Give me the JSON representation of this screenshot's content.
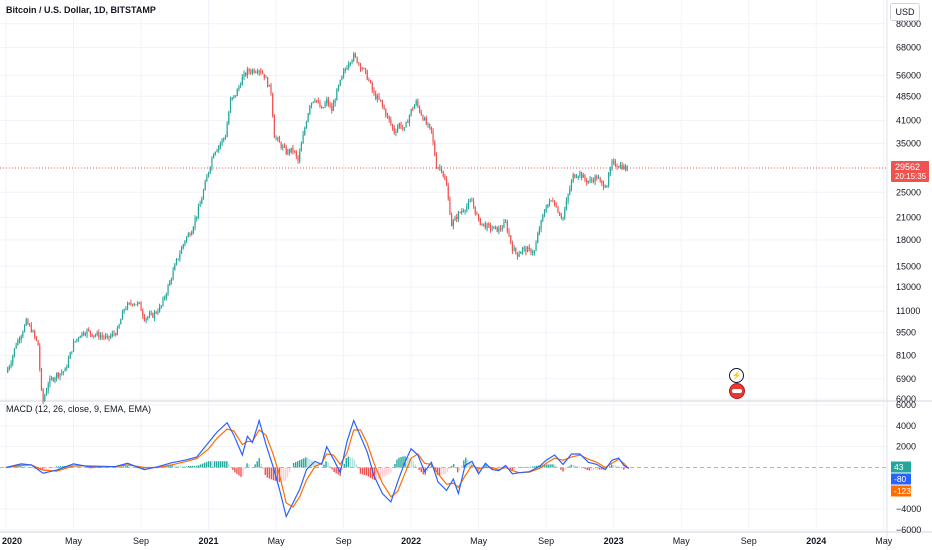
{
  "header": {
    "title": "Bitcoin / U.S. Dollar, 1D, BITSTAMP",
    "currency_button": "USD"
  },
  "macd": {
    "title": "MACD (12, 26, close, 9, EMA, EMA)"
  },
  "colors": {
    "up": "#26a69a",
    "down": "#ef5350",
    "macd_line": "#2962ff",
    "signal_line": "#ff6d00",
    "grid": "#f0f3fa"
  },
  "price_labels": {
    "last_price": "29562",
    "countdown": "20:15:35"
  },
  "macd_labels": {
    "histogram": "43",
    "macd": "-80",
    "signal": "-123"
  },
  "chart_data": [
    {
      "type": "candlestick",
      "title": "Bitcoin / U.S. Dollar, 1D, BITSTAMP",
      "yscale": "log",
      "ylim": [
        6000,
        85000
      ],
      "y_ticks": [
        6000,
        6900,
        8100,
        9500,
        11000,
        13000,
        15000,
        18000,
        21000,
        25000,
        29562,
        35000,
        41000,
        48500,
        56000,
        68000,
        80000
      ],
      "y_tick_labels": [
        "6000",
        "6900",
        "8100",
        "9500",
        "11000",
        "13000",
        "15000",
        "18000",
        "21000",
        "25000",
        "",
        "35000",
        "41000",
        "48500",
        "56000",
        "68000",
        "80000"
      ],
      "x_ticks": [
        "2020",
        "May",
        "Sep",
        "2021",
        "May",
        "Sep",
        "2022",
        "May",
        "Sep",
        "2023",
        "May",
        "Sep",
        "2024",
        "May"
      ],
      "x_tick_months": [
        0,
        4,
        8,
        12,
        16,
        20,
        24,
        28,
        32,
        36,
        40,
        44,
        48,
        52
      ],
      "last_price": 29562,
      "series_close": [
        [
          0,
          7200
        ],
        [
          0.3,
          7800
        ],
        [
          0.6,
          8800
        ],
        [
          0.9,
          9400
        ],
        [
          1.2,
          10200
        ],
        [
          1.5,
          9700
        ],
        [
          1.9,
          8700
        ],
        [
          2.15,
          5800
        ],
        [
          2.5,
          6700
        ],
        [
          3.0,
          7100
        ],
        [
          3.5,
          7300
        ],
        [
          4.0,
          8800
        ],
        [
          4.4,
          9400
        ],
        [
          4.8,
          9600
        ],
        [
          5.1,
          9400
        ],
        [
          5.6,
          9300
        ],
        [
          6.0,
          9100
        ],
        [
          6.6,
          9600
        ],
        [
          7.0,
          11200
        ],
        [
          7.5,
          11700
        ],
        [
          7.9,
          11500
        ],
        [
          8.2,
          10500
        ],
        [
          8.7,
          10700
        ],
        [
          9.2,
          11400
        ],
        [
          9.6,
          13000
        ],
        [
          10.1,
          15500
        ],
        [
          10.6,
          18000
        ],
        [
          11.0,
          19300
        ],
        [
          11.5,
          23000
        ],
        [
          12.0,
          29000
        ],
        [
          12.3,
          33000
        ],
        [
          12.6,
          34500
        ],
        [
          13.0,
          37000
        ],
        [
          13.3,
          47000
        ],
        [
          13.6,
          49000
        ],
        [
          14.0,
          55000
        ],
        [
          14.3,
          57500
        ],
        [
          14.6,
          58000
        ],
        [
          15.0,
          58500
        ],
        [
          15.3,
          56000
        ],
        [
          15.7,
          50000
        ],
        [
          15.9,
          37000
        ],
        [
          16.2,
          35000
        ],
        [
          16.6,
          33000
        ],
        [
          17.0,
          33500
        ],
        [
          17.3,
          31000
        ],
        [
          17.7,
          39000
        ],
        [
          18.0,
          46000
        ],
        [
          18.3,
          48000
        ],
        [
          18.7,
          44000
        ],
        [
          19.0,
          47000
        ],
        [
          19.3,
          44000
        ],
        [
          19.6,
          50000
        ],
        [
          20.0,
          57000
        ],
        [
          20.3,
          61500
        ],
        [
          20.6,
          64000
        ],
        [
          20.8,
          62000
        ],
        [
          21.2,
          58000
        ],
        [
          21.5,
          54000
        ],
        [
          21.8,
          49000
        ],
        [
          22.2,
          46500
        ],
        [
          22.6,
          42000
        ],
        [
          23.0,
          38000
        ],
        [
          23.3,
          40000
        ],
        [
          23.6,
          38500
        ],
        [
          24.0,
          44000
        ],
        [
          24.3,
          46500
        ],
        [
          24.5,
          44000
        ],
        [
          24.9,
          40000
        ],
        [
          25.2,
          38000
        ],
        [
          25.5,
          30000
        ],
        [
          25.8,
          29500
        ],
        [
          26.1,
          26000
        ],
        [
          26.4,
          20000
        ],
        [
          26.8,
          21500
        ],
        [
          27.2,
          22500
        ],
        [
          27.6,
          23500
        ],
        [
          28.0,
          20500
        ],
        [
          28.4,
          19800
        ],
        [
          28.8,
          19500
        ],
        [
          29.2,
          19300
        ],
        [
          29.6,
          20200
        ],
        [
          30.0,
          17000
        ],
        [
          30.3,
          16300
        ],
        [
          30.6,
          16900
        ],
        [
          31.0,
          16700
        ],
        [
          31.3,
          16600
        ],
        [
          31.6,
          19500
        ],
        [
          32.0,
          22800
        ],
        [
          32.4,
          23800
        ],
        [
          32.8,
          21500
        ],
        [
          33.0,
          21000
        ],
        [
          33.3,
          24500
        ],
        [
          33.6,
          28000
        ],
        [
          34.0,
          28500
        ],
        [
          34.3,
          27200
        ],
        [
          34.6,
          27000
        ],
        [
          35.0,
          27800
        ],
        [
          35.3,
          26300
        ],
        [
          35.6,
          26500
        ],
        [
          35.9,
          30500
        ],
        [
          36.2,
          30300
        ],
        [
          36.5,
          29900
        ],
        [
          36.7,
          29400
        ],
        [
          36.9,
          29562
        ]
      ]
    },
    {
      "type": "macd",
      "title": "MACD (12, 26, close, 9, EMA, EMA)",
      "ylim": [
        -6000,
        6000
      ],
      "y_ticks": [
        6000,
        4000,
        2000,
        -4000,
        -6000
      ],
      "y_tick_labels": [
        "6000",
        "4000",
        "2000",
        "−4000",
        "−6000"
      ],
      "last_values": {
        "histogram": 43,
        "macd": -80,
        "signal": -123
      },
      "macd_line": [
        [
          0,
          0
        ],
        [
          0.9,
          350
        ],
        [
          1.5,
          250
        ],
        [
          2.2,
          -550
        ],
        [
          3.0,
          -250
        ],
        [
          4.0,
          350
        ],
        [
          5.0,
          50
        ],
        [
          6.5,
          100
        ],
        [
          7.2,
          400
        ],
        [
          8.2,
          -200
        ],
        [
          9.0,
          80
        ],
        [
          9.8,
          450
        ],
        [
          10.6,
          700
        ],
        [
          11.3,
          1000
        ],
        [
          12.0,
          2400
        ],
        [
          12.5,
          3400
        ],
        [
          13.1,
          4300
        ],
        [
          13.5,
          3100
        ],
        [
          14.0,
          1200
        ],
        [
          14.3,
          3000
        ],
        [
          14.6,
          2400
        ],
        [
          15.0,
          4500
        ],
        [
          15.4,
          2200
        ],
        [
          15.8,
          200
        ],
        [
          16.2,
          -2100
        ],
        [
          16.6,
          -4700
        ],
        [
          17.0,
          -3400
        ],
        [
          17.4,
          -2100
        ],
        [
          17.8,
          -200
        ],
        [
          18.3,
          600
        ],
        [
          18.7,
          300
        ],
        [
          19.0,
          2000
        ],
        [
          19.4,
          800
        ],
        [
          19.8,
          -500
        ],
        [
          20.2,
          2500
        ],
        [
          20.6,
          4500
        ],
        [
          21.0,
          3000
        ],
        [
          21.4,
          1500
        ],
        [
          21.8,
          -800
        ],
        [
          22.3,
          -2500
        ],
        [
          22.8,
          -3300
        ],
        [
          23.2,
          -1400
        ],
        [
          23.6,
          400
        ],
        [
          24.0,
          1800
        ],
        [
          24.4,
          1200
        ],
        [
          24.8,
          -400
        ],
        [
          25.2,
          500
        ],
        [
          25.6,
          -1400
        ],
        [
          26.1,
          -2200
        ],
        [
          26.5,
          -1100
        ],
        [
          26.8,
          -2500
        ],
        [
          27.2,
          200
        ],
        [
          27.6,
          600
        ],
        [
          28.0,
          -600
        ],
        [
          28.4,
          400
        ],
        [
          28.8,
          -200
        ],
        [
          29.2,
          -300
        ],
        [
          29.6,
          200
        ],
        [
          30.0,
          -600
        ],
        [
          30.4,
          -500
        ],
        [
          31.0,
          -400
        ],
        [
          31.6,
          100
        ],
        [
          32.0,
          700
        ],
        [
          32.5,
          1200
        ],
        [
          33.0,
          300
        ],
        [
          33.5,
          1300
        ],
        [
          34.0,
          1300
        ],
        [
          34.5,
          500
        ],
        [
          35.0,
          300
        ],
        [
          35.5,
          -200
        ],
        [
          35.9,
          700
        ],
        [
          36.3,
          900
        ],
        [
          36.6,
          200
        ],
        [
          36.9,
          -80
        ]
      ],
      "signal_line": [
        [
          0,
          0
        ],
        [
          0.9,
          200
        ],
        [
          1.5,
          250
        ],
        [
          2.2,
          -250
        ],
        [
          3.0,
          -350
        ],
        [
          4.0,
          150
        ],
        [
          5.0,
          150
        ],
        [
          6.5,
          80
        ],
        [
          7.2,
          250
        ],
        [
          8.2,
          0
        ],
        [
          9.0,
          0
        ],
        [
          9.8,
          250
        ],
        [
          10.6,
          550
        ],
        [
          11.3,
          850
        ],
        [
          12.0,
          1800
        ],
        [
          12.5,
          2800
        ],
        [
          13.1,
          3700
        ],
        [
          13.5,
          3500
        ],
        [
          14.0,
          2200
        ],
        [
          14.3,
          2500
        ],
        [
          14.6,
          2500
        ],
        [
          15.0,
          3600
        ],
        [
          15.4,
          3100
        ],
        [
          15.8,
          1400
        ],
        [
          16.2,
          -700
        ],
        [
          16.6,
          -3400
        ],
        [
          17.0,
          -3800
        ],
        [
          17.4,
          -2800
        ],
        [
          17.8,
          -1200
        ],
        [
          18.3,
          100
        ],
        [
          18.7,
          400
        ],
        [
          19.0,
          1300
        ],
        [
          19.4,
          1200
        ],
        [
          19.8,
          300
        ],
        [
          20.2,
          1400
        ],
        [
          20.6,
          3600
        ],
        [
          21.0,
          3600
        ],
        [
          21.4,
          2300
        ],
        [
          21.8,
          400
        ],
        [
          22.3,
          -1500
        ],
        [
          22.8,
          -2800
        ],
        [
          23.2,
          -2300
        ],
        [
          23.6,
          -700
        ],
        [
          24.0,
          900
        ],
        [
          24.4,
          1300
        ],
        [
          24.8,
          400
        ],
        [
          25.2,
          300
        ],
        [
          25.6,
          -600
        ],
        [
          26.1,
          -1600
        ],
        [
          26.5,
          -1500
        ],
        [
          26.8,
          -1900
        ],
        [
          27.2,
          -800
        ],
        [
          27.6,
          200
        ],
        [
          28.0,
          -100
        ],
        [
          28.4,
          0
        ],
        [
          28.8,
          0
        ],
        [
          29.2,
          -200
        ],
        [
          29.6,
          0
        ],
        [
          30.0,
          -300
        ],
        [
          30.4,
          -500
        ],
        [
          31.0,
          -450
        ],
        [
          31.6,
          -100
        ],
        [
          32.0,
          400
        ],
        [
          32.5,
          900
        ],
        [
          33.0,
          700
        ],
        [
          33.5,
          1000
        ],
        [
          34.0,
          1200
        ],
        [
          34.5,
          800
        ],
        [
          35.0,
          500
        ],
        [
          35.5,
          0
        ],
        [
          35.9,
          400
        ],
        [
          36.3,
          800
        ],
        [
          36.6,
          400
        ],
        [
          36.9,
          -123
        ]
      ]
    }
  ]
}
